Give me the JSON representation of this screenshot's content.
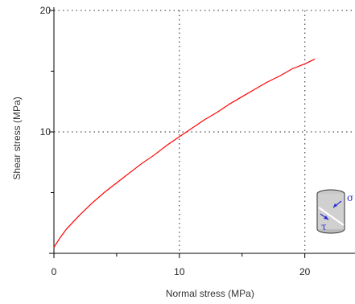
{
  "chart_data": {
    "type": "line",
    "xlabel": "Normal stress (MPa)",
    "ylabel": "Shear stress (MPa)",
    "xlim": [
      0,
      24
    ],
    "ylim": [
      0,
      20
    ],
    "x_ticks": [
      0,
      10,
      20
    ],
    "y_ticks": [
      10,
      20
    ],
    "grid": "dotted at 10 and 20",
    "series": [
      {
        "color": "#ff0000",
        "x": [
          0,
          0.5,
          1,
          2,
          3,
          4,
          5,
          6,
          7,
          8,
          9,
          10,
          11,
          12,
          13,
          14,
          15,
          16,
          17,
          18,
          19,
          20,
          20.8
        ],
        "values": [
          0.5,
          1.3,
          2.0,
          3.1,
          4.1,
          5.0,
          5.8,
          6.6,
          7.4,
          8.1,
          8.9,
          9.6,
          10.3,
          11.0,
          11.6,
          12.3,
          12.9,
          13.5,
          14.1,
          14.6,
          15.2,
          15.6,
          16.0
        ]
      }
    ],
    "inset_icon": {
      "name": "cylinder-shear-plane-icon",
      "symbols": [
        "σ",
        "τ"
      ]
    }
  }
}
